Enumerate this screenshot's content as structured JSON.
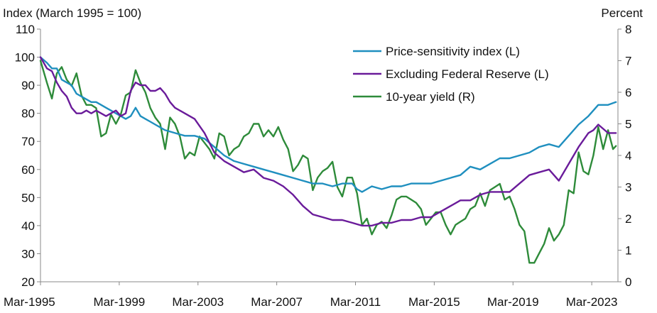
{
  "chart_data": {
    "type": "line",
    "title": "",
    "ylabel_left": "Index (March 1995 = 100)",
    "ylabel_right": "Percent",
    "ylim_left": [
      20,
      110
    ],
    "ylim_right": [
      0,
      8
    ],
    "yticks_left": [
      "20",
      "30",
      "40",
      "50",
      "60",
      "70",
      "80",
      "90",
      "100",
      "110"
    ],
    "yticks_right": [
      "0",
      "1",
      "2",
      "3",
      "4",
      "5",
      "6",
      "7",
      "8"
    ],
    "xlim": [
      1995.17,
      2024.5
    ],
    "xticks": [
      {
        "label": "Mar-1995",
        "value": 1995.17
      },
      {
        "label": "Mar-1999",
        "value": 1999.17
      },
      {
        "label": "Mar-2003",
        "value": 2003.17
      },
      {
        "label": "Mar-2007",
        "value": 2007.17
      },
      {
        "label": "Mar-2011",
        "value": 2011.17
      },
      {
        "label": "Mar-2015",
        "value": 2015.17
      },
      {
        "label": "Mar-2019",
        "value": 2019.17
      },
      {
        "label": "Mar-2023",
        "value": 2023.17
      }
    ],
    "legend_position": "top-right",
    "series": [
      {
        "name": "Price-sensitivity index (L)",
        "axis": "left",
        "color": "#1f8fbf",
        "x": [
          1995.17,
          1995.5,
          1995.75,
          1996.0,
          1996.25,
          1996.5,
          1996.75,
          1997.0,
          1997.25,
          1997.5,
          1997.75,
          1998.0,
          1998.25,
          1998.5,
          1998.75,
          1999.0,
          1999.25,
          1999.5,
          1999.75,
          2000.0,
          2000.25,
          2000.5,
          2000.75,
          2001.0,
          2001.5,
          2002.0,
          2002.5,
          2003.0,
          2003.5,
          2004.0,
          2004.5,
          2005.0,
          2005.5,
          2006.0,
          2006.5,
          2007.0,
          2007.5,
          2008.0,
          2008.5,
          2009.0,
          2009.5,
          2010.0,
          2010.5,
          2011.0,
          2011.25,
          2011.5,
          2011.75,
          2012.0,
          2012.5,
          2013.0,
          2013.5,
          2014.0,
          2014.5,
          2015.0,
          2015.5,
          2016.0,
          2016.5,
          2017.0,
          2017.5,
          2018.0,
          2018.5,
          2019.0,
          2019.5,
          2020.0,
          2020.5,
          2021.0,
          2021.5,
          2022.0,
          2022.5,
          2023.0,
          2023.5,
          2024.0,
          2024.4
        ],
        "values": [
          100,
          98,
          96,
          96,
          92,
          91,
          90,
          87,
          86,
          85,
          84,
          84,
          83,
          82,
          81,
          80,
          79,
          78,
          79,
          82,
          79,
          78,
          77,
          76,
          74,
          73,
          72,
          72,
          71,
          68,
          65,
          63,
          62,
          61,
          60,
          59,
          58,
          57,
          56,
          55,
          55,
          54,
          55,
          55,
          53,
          52,
          53,
          54,
          53,
          54,
          54,
          55,
          55,
          55,
          56,
          57,
          58,
          61,
          60,
          62,
          64,
          64,
          65,
          66,
          68,
          69,
          68,
          72,
          76,
          79,
          83,
          83,
          84
        ]
      },
      {
        "name": "Excluding Federal Reserve (L)",
        "axis": "left",
        "color": "#6a1b9a",
        "x": [
          1995.17,
          1995.5,
          1995.75,
          1996.0,
          1996.25,
          1996.5,
          1996.75,
          1997.0,
          1997.25,
          1997.5,
          1997.75,
          1998.0,
          1998.25,
          1998.5,
          1998.75,
          1999.0,
          1999.25,
          1999.5,
          1999.75,
          2000.0,
          2000.25,
          2000.5,
          2000.75,
          2001.0,
          2001.25,
          2001.5,
          2001.75,
          2002.0,
          2002.5,
          2003.0,
          2003.5,
          2004.0,
          2004.5,
          2005.0,
          2005.5,
          2006.0,
          2006.5,
          2007.0,
          2007.5,
          2008.0,
          2008.5,
          2009.0,
          2009.5,
          2010.0,
          2010.5,
          2011.0,
          2011.5,
          2012.0,
          2012.5,
          2013.0,
          2013.5,
          2014.0,
          2014.5,
          2015.0,
          2015.5,
          2016.0,
          2016.5,
          2017.0,
          2017.5,
          2018.0,
          2018.5,
          2019.0,
          2019.5,
          2020.0,
          2020.5,
          2021.0,
          2021.5,
          2022.0,
          2022.5,
          2023.0,
          2023.25,
          2023.5,
          2024.0,
          2024.4
        ],
        "values": [
          100,
          96,
          95,
          91,
          88,
          86,
          82,
          80,
          80,
          81,
          80,
          81,
          80,
          79,
          80,
          81,
          79,
          80,
          88,
          91,
          90,
          90,
          88,
          88,
          89,
          87,
          84,
          82,
          80,
          78,
          73,
          66,
          63,
          61,
          59,
          60,
          57,
          56,
          54,
          51,
          47,
          44,
          43,
          42,
          42,
          41,
          40,
          40,
          41,
          41,
          42,
          42,
          43,
          43,
          45,
          47,
          49,
          49,
          51,
          52,
          52,
          52,
          55,
          58,
          59,
          60,
          56,
          62,
          68,
          73,
          74,
          76,
          73,
          73
        ]
      },
      {
        "name": "10-year yield (R)",
        "axis": "right",
        "color": "#2e8b3a",
        "x": [
          1995.17,
          1995.5,
          1995.75,
          1996.0,
          1996.25,
          1996.5,
          1996.75,
          1997.0,
          1997.25,
          1997.5,
          1997.75,
          1998.0,
          1998.25,
          1998.5,
          1998.75,
          1999.0,
          1999.25,
          1999.5,
          1999.75,
          2000.0,
          2000.25,
          2000.5,
          2000.75,
          2001.0,
          2001.25,
          2001.5,
          2001.75,
          2002.0,
          2002.25,
          2002.5,
          2002.75,
          2003.0,
          2003.25,
          2003.5,
          2003.75,
          2004.0,
          2004.25,
          2004.5,
          2004.75,
          2005.0,
          2005.25,
          2005.5,
          2005.75,
          2006.0,
          2006.25,
          2006.5,
          2006.75,
          2007.0,
          2007.25,
          2007.5,
          2007.75,
          2008.0,
          2008.25,
          2008.5,
          2008.75,
          2009.0,
          2009.25,
          2009.5,
          2009.75,
          2010.0,
          2010.25,
          2010.5,
          2010.75,
          2011.0,
          2011.25,
          2011.5,
          2011.75,
          2012.0,
          2012.25,
          2012.5,
          2012.75,
          2013.0,
          2013.25,
          2013.5,
          2013.75,
          2014.0,
          2014.25,
          2014.5,
          2014.75,
          2015.0,
          2015.25,
          2015.5,
          2015.75,
          2016.0,
          2016.25,
          2016.5,
          2016.75,
          2017.0,
          2017.25,
          2017.5,
          2017.75,
          2018.0,
          2018.25,
          2018.5,
          2018.75,
          2019.0,
          2019.25,
          2019.5,
          2019.75,
          2020.0,
          2020.25,
          2020.5,
          2020.75,
          2021.0,
          2021.25,
          2021.5,
          2021.75,
          2022.0,
          2022.25,
          2022.5,
          2022.75,
          2023.0,
          2023.25,
          2023.5,
          2023.75,
          2024.0,
          2024.25,
          2024.4
        ],
        "values": [
          7.0,
          6.3,
          5.8,
          6.6,
          6.8,
          6.4,
          6.2,
          6.6,
          5.9,
          5.6,
          5.6,
          5.5,
          4.6,
          4.7,
          5.3,
          5.0,
          5.3,
          5.9,
          6.0,
          6.7,
          6.3,
          6.0,
          5.5,
          5.2,
          5.0,
          4.2,
          5.2,
          5.0,
          4.6,
          3.9,
          4.1,
          4.0,
          4.6,
          4.4,
          4.2,
          3.9,
          4.7,
          4.6,
          4.0,
          4.2,
          4.3,
          4.6,
          4.7,
          5.0,
          5.0,
          4.6,
          4.8,
          4.6,
          4.9,
          4.5,
          4.2,
          3.5,
          3.7,
          4.0,
          3.9,
          2.9,
          3.3,
          3.5,
          3.6,
          3.8,
          3.0,
          2.7,
          3.3,
          3.3,
          2.8,
          1.8,
          2.0,
          1.5,
          1.8,
          1.9,
          1.7,
          2.1,
          2.6,
          2.7,
          2.7,
          2.6,
          2.5,
          2.3,
          1.8,
          2.0,
          2.2,
          2.2,
          1.8,
          1.5,
          1.8,
          1.9,
          2.0,
          2.3,
          2.4,
          2.8,
          2.4,
          2.9,
          3.0,
          3.1,
          2.6,
          2.7,
          2.3,
          1.8,
          1.6,
          0.6,
          0.6,
          0.9,
          1.2,
          1.7,
          1.3,
          1.5,
          1.8,
          2.9,
          2.8,
          4.1,
          3.5,
          3.4,
          4.0,
          4.9,
          4.2,
          4.8,
          4.2,
          4.3
        ]
      }
    ]
  }
}
